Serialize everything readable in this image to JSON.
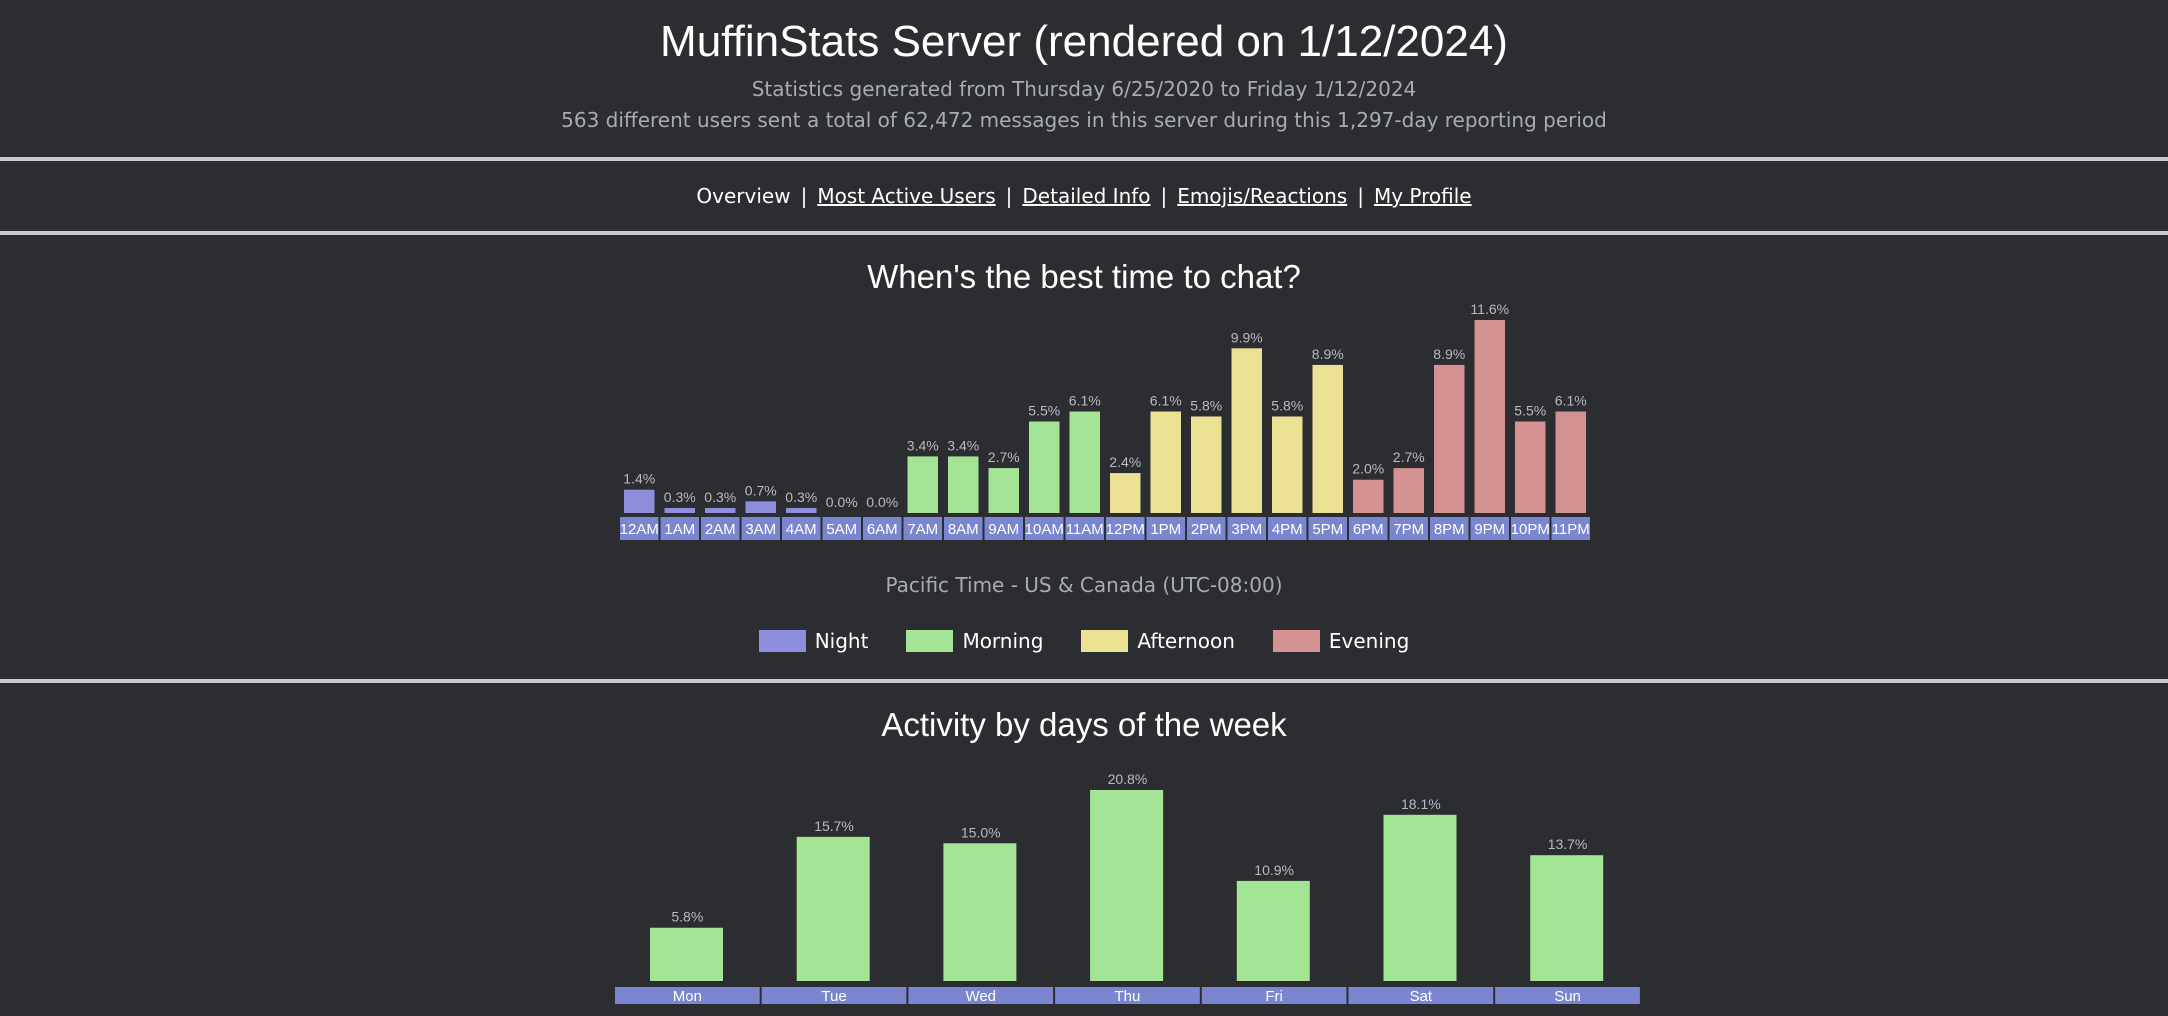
{
  "header": {
    "title": "MuffinStats Server (rendered on 1/12/2024)",
    "subtitle_1": "Statistics generated from Thursday 6/25/2020 to Friday 1/12/2024",
    "subtitle_2": "563 different users sent a total of 62,472 messages in this server during this 1,297-day reporting period"
  },
  "nav": {
    "overview": "Overview",
    "most_active_users": "Most Active Users",
    "detailed_info": "Detailed Info",
    "emojis_reactions": "Emojis/Reactions",
    "my_profile": "My Profile",
    "separator": "|"
  },
  "colors": {
    "night": "#8e8edc",
    "morning": "#a3e495",
    "afternoon": "#eae193",
    "evening": "#d49292",
    "axis_label_bg": "#7a86cf"
  },
  "hourly": {
    "title": "When's the best time to chat?",
    "timezone": "Pacific Time - US & Canada (UTC-08:00)",
    "legend": [
      {
        "key": "night",
        "label": "Night"
      },
      {
        "key": "morning",
        "label": "Morning"
      },
      {
        "key": "afternoon",
        "label": "Afternoon"
      },
      {
        "key": "evening",
        "label": "Evening"
      }
    ]
  },
  "weekly": {
    "title": "Activity by days of the week"
  },
  "chart_data": [
    {
      "type": "bar",
      "title": "When's the best time to chat?",
      "xlabel": "Pacific Time - US & Canada (UTC-08:00)",
      "ylabel": "",
      "categories": [
        "12AM",
        "1AM",
        "2AM",
        "3AM",
        "4AM",
        "5AM",
        "6AM",
        "7AM",
        "8AM",
        "9AM",
        "10AM",
        "11AM",
        "12PM",
        "1PM",
        "2PM",
        "3PM",
        "4PM",
        "5PM",
        "6PM",
        "7PM",
        "8PM",
        "9PM",
        "10PM",
        "11PM"
      ],
      "values": [
        1.4,
        0.3,
        0.3,
        0.7,
        0.3,
        0.0,
        0.0,
        3.4,
        3.4,
        2.7,
        5.5,
        6.1,
        2.4,
        6.1,
        5.8,
        9.9,
        5.8,
        8.9,
        2.0,
        2.7,
        8.9,
        11.6,
        5.5,
        6.1
      ],
      "value_labels": [
        "1.4%",
        "0.3%",
        "0.3%",
        "0.7%",
        "0.3%",
        "0.0%",
        "0.0%",
        "3.4%",
        "3.4%",
        "2.7%",
        "5.5%",
        "6.1%",
        "2.4%",
        "6.1%",
        "5.8%",
        "9.9%",
        "5.8%",
        "8.9%",
        "2.0%",
        "2.7%",
        "8.9%",
        "11.6%",
        "5.5%",
        "6.1%"
      ],
      "groups": [
        "night",
        "night",
        "night",
        "night",
        "night",
        "night",
        "night",
        "morning",
        "morning",
        "morning",
        "morning",
        "morning",
        "afternoon",
        "afternoon",
        "afternoon",
        "afternoon",
        "afternoon",
        "afternoon",
        "evening",
        "evening",
        "evening",
        "evening",
        "evening",
        "evening"
      ],
      "ylim": [
        0,
        11.6
      ],
      "grid": false,
      "legend_position": "bottom"
    },
    {
      "type": "bar",
      "title": "Activity by days of the week",
      "xlabel": "",
      "ylabel": "",
      "categories": [
        "Mon",
        "Tue",
        "Wed",
        "Thu",
        "Fri",
        "Sat",
        "Sun"
      ],
      "values": [
        5.8,
        15.7,
        15.0,
        20.8,
        10.9,
        18.1,
        13.7
      ],
      "value_labels": [
        "5.8%",
        "15.7%",
        "15.0%",
        "20.8%",
        "10.9%",
        "18.1%",
        "13.7%"
      ],
      "ylim": [
        0,
        20.8
      ],
      "grid": false
    }
  ]
}
